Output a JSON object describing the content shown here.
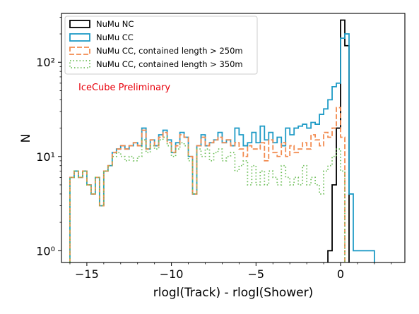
{
  "chart_data": {
    "type": "histogram-step",
    "xlabel": "rlogl(Track) - rlogl(Shower)",
    "ylabel": "N",
    "xlim": [
      -16.5,
      3.8
    ],
    "ylim": [
      0.75,
      330
    ],
    "yscale": "log",
    "bin_width": 0.25,
    "bins_start": -16.0,
    "xticks": [
      -15,
      -10,
      -5,
      0
    ],
    "xtick_labels": [
      "−15",
      "−10",
      "−5",
      "0"
    ],
    "yticks": [
      1,
      10,
      100
    ],
    "ytick_labels": [
      "10⁰",
      "10¹",
      "10²"
    ],
    "annotation": {
      "text": "IceCube Preliminary",
      "x": -15.5,
      "y": 55,
      "color": "#e8000b"
    },
    "legend_position": "upper-left",
    "series": [
      {
        "name": "NuMu NC",
        "color": "#000000",
        "dash": "solid",
        "bins": [
          [
            -1.0,
            0.0
          ],
          [
            -0.75,
            1
          ],
          [
            -0.5,
            5
          ],
          [
            -0.25,
            20
          ],
          [
            0.0,
            280
          ],
          [
            0.25,
            150
          ],
          [
            0.5,
            0.0
          ]
        ]
      },
      {
        "name": "NuMu CC",
        "color": "#1f9bc6",
        "dash": "solid",
        "bins": [
          [
            -16.0,
            6
          ],
          [
            -15.75,
            7
          ],
          [
            -15.5,
            6
          ],
          [
            -15.25,
            7
          ],
          [
            -15.0,
            5
          ],
          [
            -14.75,
            4
          ],
          [
            -14.5,
            6
          ],
          [
            -14.25,
            3
          ],
          [
            -14.0,
            7
          ],
          [
            -13.75,
            8
          ],
          [
            -13.5,
            11
          ],
          [
            -13.25,
            12
          ],
          [
            -13.0,
            13
          ],
          [
            -12.75,
            12
          ],
          [
            -12.5,
            13
          ],
          [
            -12.25,
            14
          ],
          [
            -12.0,
            13
          ],
          [
            -11.75,
            20
          ],
          [
            -11.5,
            12
          ],
          [
            -11.25,
            15
          ],
          [
            -11.0,
            13
          ],
          [
            -10.75,
            17
          ],
          [
            -10.5,
            19
          ],
          [
            -10.25,
            15
          ],
          [
            -10.0,
            11
          ],
          [
            -9.75,
            14
          ],
          [
            -9.5,
            18
          ],
          [
            -9.25,
            16
          ],
          [
            -9.0,
            10
          ],
          [
            -8.75,
            4
          ],
          [
            -8.5,
            13
          ],
          [
            -8.25,
            17
          ],
          [
            -8.0,
            13
          ],
          [
            -7.75,
            14
          ],
          [
            -7.5,
            15
          ],
          [
            -7.25,
            18
          ],
          [
            -7.0,
            14
          ],
          [
            -6.75,
            15
          ],
          [
            -6.5,
            13
          ],
          [
            -6.25,
            20
          ],
          [
            -6.0,
            17
          ],
          [
            -5.75,
            13
          ],
          [
            -5.5,
            14
          ],
          [
            -5.25,
            18
          ],
          [
            -5.0,
            14
          ],
          [
            -4.75,
            21
          ],
          [
            -4.5,
            15
          ],
          [
            -4.25,
            18
          ],
          [
            -4.0,
            14
          ],
          [
            -3.75,
            16
          ],
          [
            -3.5,
            13
          ],
          [
            -3.25,
            20
          ],
          [
            -3.0,
            17
          ],
          [
            -2.75,
            20
          ],
          [
            -2.5,
            21
          ],
          [
            -2.25,
            22
          ],
          [
            -2.0,
            20
          ],
          [
            -1.75,
            23
          ],
          [
            -1.5,
            22
          ],
          [
            -1.25,
            28
          ],
          [
            -1.0,
            32
          ],
          [
            -0.75,
            40
          ],
          [
            -0.5,
            55
          ],
          [
            -0.25,
            60
          ],
          [
            0.0,
            180
          ],
          [
            0.25,
            200
          ],
          [
            0.5,
            4
          ],
          [
            0.75,
            1
          ],
          [
            1.0,
            1
          ],
          [
            1.25,
            1
          ],
          [
            1.5,
            1
          ],
          [
            1.75,
            1
          ],
          [
            2.0,
            0.0
          ]
        ]
      },
      {
        "name": "NuMu CC, contained length > 250m",
        "color": "#f28a4e",
        "dash": "7,3",
        "bins": [
          [
            -16.0,
            6
          ],
          [
            -15.75,
            7
          ],
          [
            -15.5,
            6
          ],
          [
            -15.25,
            7
          ],
          [
            -15.0,
            5
          ],
          [
            -14.75,
            4
          ],
          [
            -14.5,
            6
          ],
          [
            -14.25,
            3
          ],
          [
            -14.0,
            7
          ],
          [
            -13.75,
            8
          ],
          [
            -13.5,
            11
          ],
          [
            -13.25,
            12
          ],
          [
            -13.0,
            13
          ],
          [
            -12.75,
            12
          ],
          [
            -12.5,
            13
          ],
          [
            -12.25,
            14
          ],
          [
            -12.0,
            13
          ],
          [
            -11.75,
            19
          ],
          [
            -11.5,
            12
          ],
          [
            -11.25,
            15
          ],
          [
            -11.0,
            13
          ],
          [
            -10.75,
            16
          ],
          [
            -10.5,
            18
          ],
          [
            -10.25,
            14
          ],
          [
            -10.0,
            11
          ],
          [
            -9.75,
            13
          ],
          [
            -9.5,
            17
          ],
          [
            -9.25,
            16
          ],
          [
            -9.0,
            10
          ],
          [
            -8.75,
            4
          ],
          [
            -8.5,
            13
          ],
          [
            -8.25,
            16
          ],
          [
            -8.0,
            13
          ],
          [
            -7.75,
            14
          ],
          [
            -7.5,
            15
          ],
          [
            -7.25,
            16
          ],
          [
            -7.0,
            14
          ],
          [
            -6.75,
            15
          ],
          [
            -6.5,
            13
          ],
          [
            -6.25,
            14
          ],
          [
            -6.0,
            12
          ],
          [
            -5.75,
            10
          ],
          [
            -5.5,
            13
          ],
          [
            -5.25,
            12
          ],
          [
            -5.0,
            12
          ],
          [
            -4.75,
            14
          ],
          [
            -4.5,
            9
          ],
          [
            -4.25,
            15
          ],
          [
            -4.0,
            11
          ],
          [
            -3.75,
            10
          ],
          [
            -3.5,
            14
          ],
          [
            -3.25,
            10
          ],
          [
            -3.0,
            13
          ],
          [
            -2.75,
            11
          ],
          [
            -2.5,
            12
          ],
          [
            -2.25,
            14
          ],
          [
            -2.0,
            12
          ],
          [
            -1.75,
            17
          ],
          [
            -1.5,
            15
          ],
          [
            -1.25,
            13
          ],
          [
            -1.0,
            18
          ],
          [
            -0.75,
            16
          ],
          [
            -0.5,
            20
          ],
          [
            -0.25,
            33
          ],
          [
            0.0,
            16
          ],
          [
            0.25,
            0.0
          ]
        ]
      },
      {
        "name": "NuMu CC, contained length > 350m",
        "color": "#6fbf5a",
        "dash": "1.5,3",
        "bins": [
          [
            -16.0,
            6
          ],
          [
            -15.75,
            7
          ],
          [
            -15.5,
            6
          ],
          [
            -15.25,
            7
          ],
          [
            -15.0,
            5
          ],
          [
            -14.75,
            4
          ],
          [
            -14.5,
            6
          ],
          [
            -14.25,
            3
          ],
          [
            -14.0,
            7
          ],
          [
            -13.75,
            8
          ],
          [
            -13.5,
            10
          ],
          [
            -13.25,
            11
          ],
          [
            -13.0,
            10
          ],
          [
            -12.75,
            9
          ],
          [
            -12.5,
            10
          ],
          [
            -12.25,
            9
          ],
          [
            -12.0,
            10
          ],
          [
            -11.75,
            15
          ],
          [
            -11.5,
            11
          ],
          [
            -11.25,
            13
          ],
          [
            -11.0,
            12
          ],
          [
            -10.75,
            15
          ],
          [
            -10.5,
            16
          ],
          [
            -10.25,
            13
          ],
          [
            -10.0,
            10
          ],
          [
            -9.75,
            12
          ],
          [
            -9.5,
            14
          ],
          [
            -9.25,
            13
          ],
          [
            -9.0,
            9
          ],
          [
            -8.75,
            4
          ],
          [
            -8.5,
            12
          ],
          [
            -8.25,
            10
          ],
          [
            -8.0,
            12
          ],
          [
            -7.75,
            9
          ],
          [
            -7.5,
            11
          ],
          [
            -7.25,
            12
          ],
          [
            -7.0,
            9
          ],
          [
            -6.75,
            10
          ],
          [
            -6.5,
            11
          ],
          [
            -6.25,
            7
          ],
          [
            -6.0,
            8
          ],
          [
            -5.75,
            9
          ],
          [
            -5.5,
            5
          ],
          [
            -5.25,
            8
          ],
          [
            -5.0,
            5
          ],
          [
            -4.75,
            7
          ],
          [
            -4.5,
            5
          ],
          [
            -4.25,
            7
          ],
          [
            -4.0,
            6
          ],
          [
            -3.75,
            5
          ],
          [
            -3.5,
            8
          ],
          [
            -3.25,
            6
          ],
          [
            -3.0,
            5
          ],
          [
            -2.75,
            6
          ],
          [
            -2.5,
            5
          ],
          [
            -2.25,
            8
          ],
          [
            -2.0,
            5
          ],
          [
            -1.75,
            6
          ],
          [
            -1.5,
            5
          ],
          [
            -1.25,
            4
          ],
          [
            -1.0,
            7
          ],
          [
            -0.75,
            8
          ],
          [
            -0.5,
            10
          ],
          [
            -0.25,
            12
          ],
          [
            0.0,
            7
          ],
          [
            0.25,
            0.0
          ]
        ]
      }
    ]
  }
}
